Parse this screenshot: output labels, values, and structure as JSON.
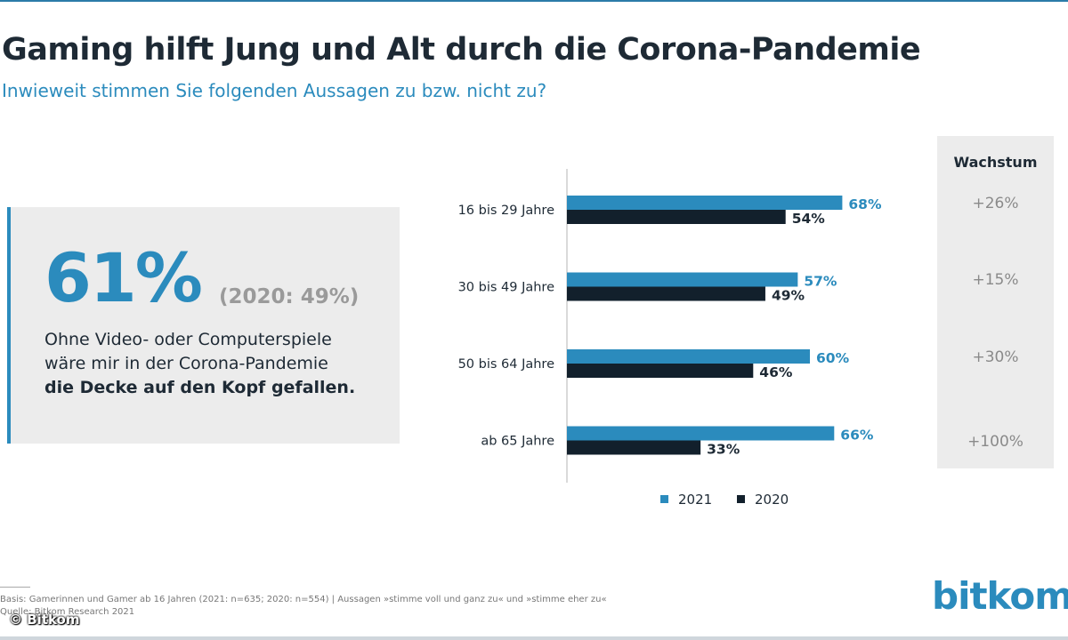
{
  "header": {
    "title": "Gaming hilft Jung und Alt durch die Corona-Pandemie",
    "subtitle": "Inwieweit stimmen Sie folgenden Aussagen zu bzw. nicht zu?"
  },
  "highlight": {
    "value": "61%",
    "previous": "(2020: 49%)",
    "line1": "Ohne Video- oder Computerspiele",
    "line2": "wäre mir in der Corona-Pandemie",
    "line3_bold": "die Decke auf den Kopf gefallen."
  },
  "chart_data": {
    "type": "bar",
    "orientation": "horizontal",
    "categories": [
      "16 bis 29 Jahre",
      "30 bis 49 Jahre",
      "50 bis 64 Jahre",
      "ab 65 Jahre"
    ],
    "series": [
      {
        "name": "2021",
        "values": [
          68,
          57,
          60,
          66
        ],
        "labels": [
          "68%",
          "57%",
          "60%",
          "66%"
        ],
        "color": "#2b8bbd"
      },
      {
        "name": "2020",
        "values": [
          54,
          49,
          46,
          33
        ],
        "labels": [
          "54%",
          "49%",
          "46%",
          "33%"
        ],
        "color": "#12202c"
      }
    ],
    "xlim": [
      0,
      100
    ],
    "legend_position": "bottom",
    "title": "",
    "xlabel": "",
    "ylabel": ""
  },
  "growth": {
    "header": "Wachstum",
    "values": [
      "+26%",
      "+15%",
      "+30%",
      "+100%"
    ]
  },
  "footer": {
    "line1": "Basis: Gamerinnen und Gamer ab 16 Jahren (2021: n=635; 2020: n=554) | Aussagen »stimme voll und ganz zu« und »stimme eher zu«",
    "line2": "Quelle: Bitkom Research 2021",
    "copyright": "© Bitkom",
    "brand": "bitkom"
  },
  "colors": {
    "accent": "#2b8bbd",
    "dark": "#12202c",
    "panel": "#ececec",
    "muted": "#8a8a8a"
  }
}
